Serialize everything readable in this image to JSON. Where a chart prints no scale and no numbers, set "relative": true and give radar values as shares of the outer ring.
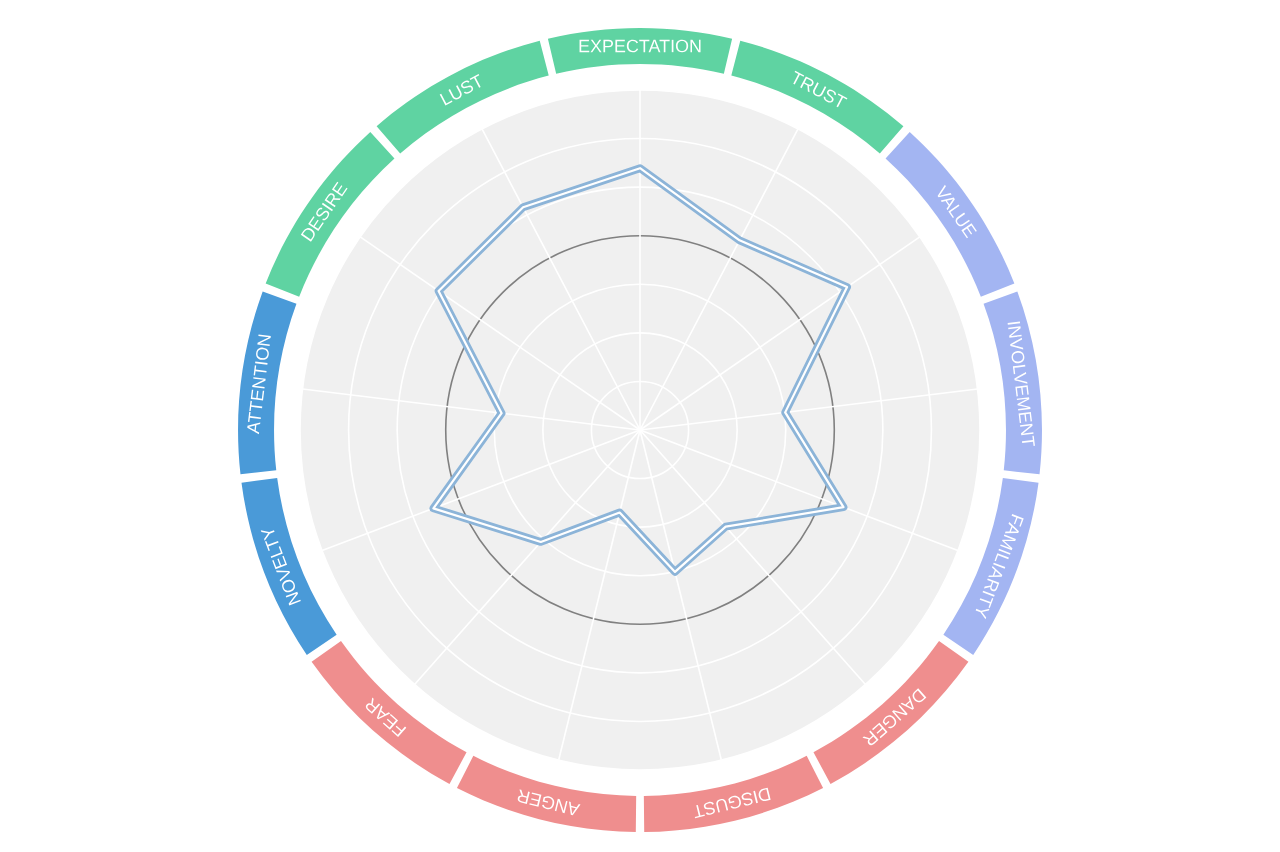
{
  "chart_data": {
    "type": "radar",
    "relative": true,
    "grid": true,
    "categories": [
      "EXPECTATION",
      "TRUST",
      "VALUE",
      "INVOLVEMENT",
      "FAMILIARITY",
      "DANGER",
      "DISGUST",
      "ANGER",
      "FEAR",
      "NOVELTY",
      "ATTENTION",
      "DESIRE",
      "LUST"
    ],
    "series": [
      {
        "color": "#8cb4d8",
        "values": [
          0.77,
          0.63,
          0.74,
          0.43,
          0.64,
          0.38,
          0.43,
          0.25,
          0.44,
          0.65,
          0.41,
          0.72,
          0.74
        ]
      }
    ]
  }
}
